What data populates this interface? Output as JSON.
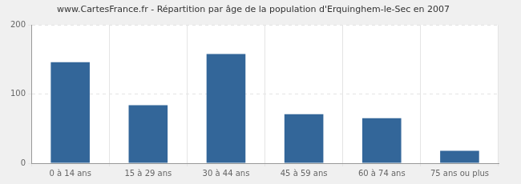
{
  "chart_data": {
    "type": "bar",
    "title": "www.CartesFrance.fr - Répartition par âge de la population d'Erquinghem-le-Sec en 2007",
    "categories": [
      "0 à 14 ans",
      "15 à 29 ans",
      "30 à 44 ans",
      "45 à 59 ans",
      "60 à 74 ans",
      "75 ans ou plus"
    ],
    "values": [
      146,
      84,
      158,
      71,
      65,
      18
    ],
    "color": "#336699",
    "ylim": [
      0,
      200
    ],
    "yticks": [
      0,
      100,
      200
    ],
    "grid": true
  }
}
